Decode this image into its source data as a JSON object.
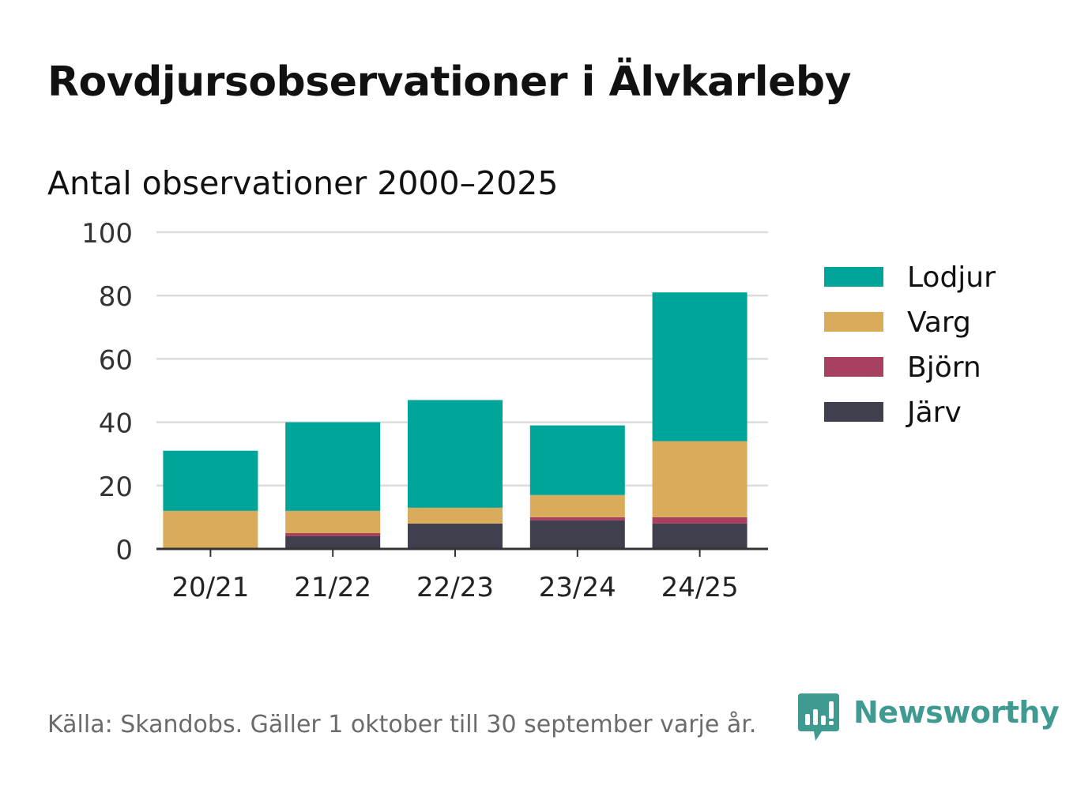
{
  "title": "Rovdjursobservationer i Älvkarleby",
  "subtitle": "Antal observationer 2000–2025",
  "footer": {
    "source": "Källa: Skandobs. Gäller 1 oktober till 30 september varje år.",
    "brand": "Newsworthy"
  },
  "chart_data": {
    "type": "bar",
    "stacked": true,
    "categories": [
      "20/21",
      "21/22",
      "22/23",
      "23/24",
      "24/25"
    ],
    "series": [
      {
        "name": "Järv",
        "color": "#3f3f4e",
        "values": [
          0,
          4,
          8,
          9,
          8
        ]
      },
      {
        "name": "Björn",
        "color": "#a8405f",
        "values": [
          0,
          1,
          0,
          1,
          2
        ]
      },
      {
        "name": "Varg",
        "color": "#d9ab5b",
        "values": [
          12,
          7,
          5,
          7,
          24
        ]
      },
      {
        "name": "Lodjur",
        "color": "#00a59a",
        "values": [
          19,
          28,
          34,
          22,
          47
        ]
      }
    ],
    "legend_order": [
      "Lodjur",
      "Varg",
      "Björn",
      "Järv"
    ],
    "ylim": [
      0,
      100
    ],
    "yticks": [
      0,
      20,
      40,
      60,
      80,
      100
    ],
    "grid": true,
    "legend_position": "right"
  }
}
